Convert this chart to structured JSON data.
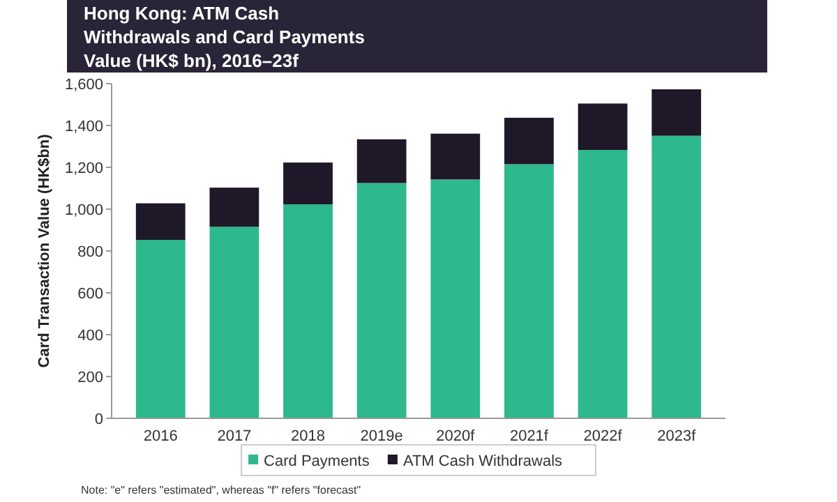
{
  "chart_data": {
    "type": "bar",
    "title": "Hong Kong: ATM Cash Withdrawals and Card Payments Value (HK$ bn), 2016–23f",
    "ylabel": "Card Transaction Value (HK$bn)",
    "categories": [
      "2016",
      "2017",
      "2018",
      "2019e",
      "2020f",
      "2021f",
      "2022f",
      "2023f"
    ],
    "stacked": true,
    "series": [
      {
        "name": "Card Payments",
        "color": "#2eb88e",
        "values": [
          853,
          916,
          1023,
          1125,
          1142,
          1215,
          1283,
          1351
        ]
      },
      {
        "name": "ATM Cash Withdrawals",
        "color": "#1e1828",
        "values": [
          175,
          187,
          200,
          209,
          219,
          222,
          222,
          222
        ]
      }
    ],
    "ylim": [
      0,
      1600
    ],
    "yticks": [
      0,
      {
        "value": 200,
        "label": "200"
      },
      {
        "value": 400,
        "label": "400"
      },
      {
        "value": 600,
        "label": "600"
      },
      {
        "value": 800,
        "label": "800"
      },
      {
        "value": 1000,
        "label": "1,000"
      },
      {
        "value": 1200,
        "label": "1,200"
      },
      {
        "value": 1400,
        "label": "1,400"
      },
      {
        "value": 1600,
        "label": "1,600"
      }
    ],
    "grid": false,
    "legend": "bottom",
    "annotations": [
      "Note: \"e\" refers \"estimated\",  whereas \"f\" refers \"forecast\""
    ]
  }
}
